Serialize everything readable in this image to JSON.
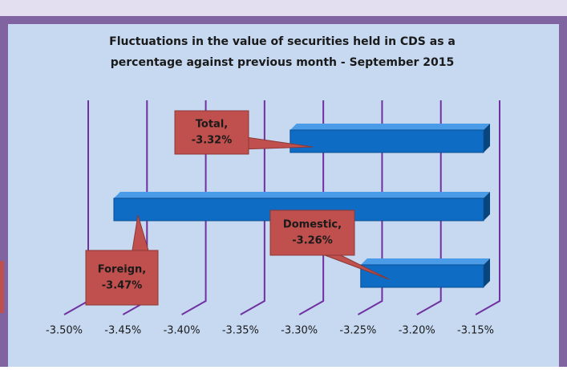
{
  "chart_data": {
    "type": "bar",
    "orientation": "horizontal",
    "title": [
      "Fluctuations in the value of securities held in CDS as a",
      "percentage against previous month - September 2015"
    ],
    "categories": [
      "Total,",
      "Foreign,",
      "Domestic,"
    ],
    "values": [
      -3.32,
      -3.47,
      -3.26
    ],
    "value_labels": [
      "-3.32%",
      "-3.47%",
      "-3.26%"
    ],
    "color": "#0f6cc4",
    "xlim": [
      -3.5,
      -3.15
    ],
    "xticks": [
      {
        "value": -3.5,
        "label": "-3.50%"
      },
      {
        "value": -3.45,
        "label": "-3.45%"
      },
      {
        "value": -3.4,
        "label": "-3.40%"
      },
      {
        "value": -3.35,
        "label": "-3.35%"
      },
      {
        "value": -3.3,
        "label": "-3.30%"
      },
      {
        "value": -3.25,
        "label": "-3.25%"
      },
      {
        "value": -3.2,
        "label": "-3.20%"
      },
      {
        "value": -3.15,
        "label": "-3.15%"
      }
    ],
    "grid": true
  }
}
